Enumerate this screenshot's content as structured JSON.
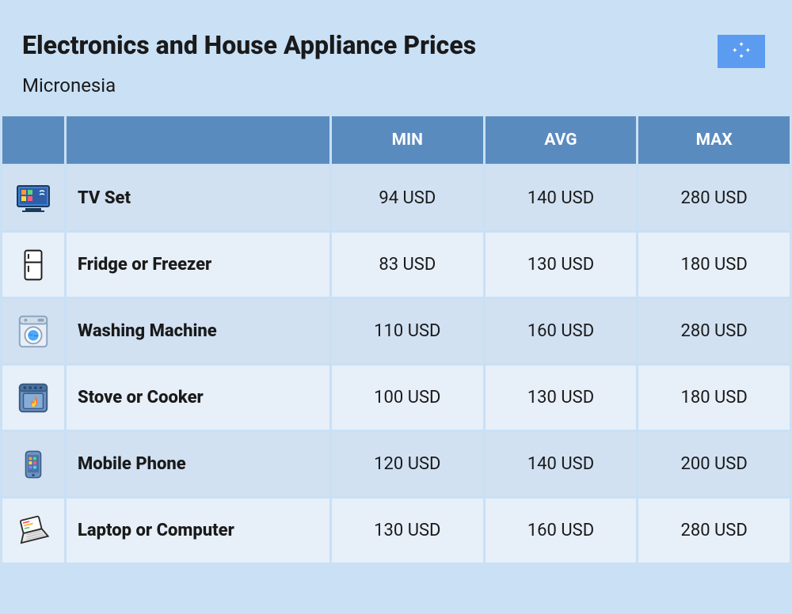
{
  "header": {
    "title": "Electronics and House Appliance Prices",
    "subtitle": "Micronesia"
  },
  "flag": {
    "bg_color": "#5b9bf0",
    "star_color": "#ffffff"
  },
  "table": {
    "columns": [
      "MIN",
      "AVG",
      "MAX"
    ],
    "header_bg": "#5a8bbf",
    "header_fg": "#ffffff",
    "row_even_bg": "#d1e1f2",
    "row_odd_bg": "#e7eff9",
    "text_color": "#1a1a1a",
    "name_fontweight": 800,
    "value_fontsize": 22,
    "currency": "USD",
    "rows": [
      {
        "icon": "tv",
        "name": "TV Set",
        "min": "94 USD",
        "avg": "140 USD",
        "max": "280 USD"
      },
      {
        "icon": "fridge",
        "name": "Fridge or Freezer",
        "min": "83 USD",
        "avg": "130 USD",
        "max": "180 USD"
      },
      {
        "icon": "washer",
        "name": "Washing Machine",
        "min": "110 USD",
        "avg": "160 USD",
        "max": "280 USD"
      },
      {
        "icon": "stove",
        "name": "Stove or Cooker",
        "min": "100 USD",
        "avg": "130 USD",
        "max": "180 USD"
      },
      {
        "icon": "phone",
        "name": "Mobile Phone",
        "min": "120 USD",
        "avg": "140 USD",
        "max": "200 USD"
      },
      {
        "icon": "laptop",
        "name": "Laptop or Computer",
        "min": "130 USD",
        "avg": "160 USD",
        "max": "280 USD"
      }
    ]
  },
  "colors": {
    "page_bg": "#c9e0f5"
  }
}
